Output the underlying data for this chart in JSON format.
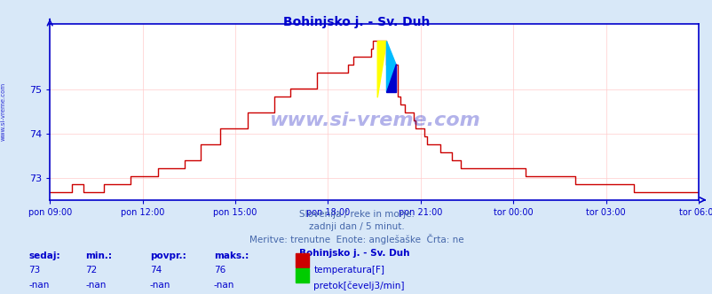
{
  "title": "Bohinjsko j. - Sv. Duh",
  "title_color": "#0000cc",
  "bg_color": "#d8e8f8",
  "plot_bg_color": "#ffffff",
  "grid_color": "#ffcccc",
  "axis_color": "#0000cc",
  "tick_color": "#0000cc",
  "watermark_text": "www.si-vreme.com",
  "watermark_color": "#0000bb",
  "watermark_alpha": 0.3,
  "left_label": "www.si-vreme.com",
  "xlabel_ticks": [
    "pon 09:00",
    "pon 12:00",
    "pon 15:00",
    "pon 18:00",
    "pon 21:00",
    "tor 00:00",
    "tor 03:00",
    "tor 06:00"
  ],
  "ylim": [
    72.5,
    76.5
  ],
  "yticks": [
    73,
    74,
    75
  ],
  "line_color": "#cc0000",
  "line_width": 1.0,
  "subtitle_lines": [
    "Slovenija / reke in morje.",
    "zadnji dan / 5 minut.",
    "Meritve: trenutne  Enote: anglešaške  Črta: ne"
  ],
  "subtitle_color": "#4466aa",
  "footer_color": "#0000cc",
  "info_labels": [
    "sedaj:",
    "min.:",
    "povpr.:",
    "maks.:"
  ],
  "info_values_temp": [
    "73",
    "72",
    "74",
    "76"
  ],
  "info_values_flow": [
    "-nan",
    "-nan",
    "-nan",
    "-nan"
  ],
  "legend_station": "Bohinjsko j. - Sv. Duh",
  "legend_temp_label": "temperatura[F]",
  "legend_temp_color": "#cc0000",
  "legend_flow_label": "pretok[čevelj3/min]",
  "legend_flow_color": "#00cc00",
  "temp_data": [
    72.68,
    72.68,
    72.68,
    72.68,
    72.68,
    72.68,
    72.68,
    72.68,
    72.68,
    72.68,
    72.86,
    72.86,
    72.86,
    72.86,
    72.86,
    72.68,
    72.68,
    72.68,
    72.68,
    72.68,
    72.68,
    72.68,
    72.68,
    72.68,
    72.86,
    72.86,
    72.86,
    72.86,
    72.86,
    72.86,
    72.86,
    72.86,
    72.86,
    72.86,
    72.86,
    72.86,
    73.04,
    73.04,
    73.04,
    73.04,
    73.04,
    73.04,
    73.04,
    73.04,
    73.04,
    73.04,
    73.04,
    73.04,
    73.22,
    73.22,
    73.22,
    73.22,
    73.22,
    73.22,
    73.22,
    73.22,
    73.22,
    73.22,
    73.22,
    73.22,
    73.4,
    73.4,
    73.4,
    73.4,
    73.4,
    73.4,
    73.4,
    73.76,
    73.76,
    73.76,
    73.76,
    73.76,
    73.76,
    73.76,
    73.76,
    73.76,
    74.12,
    74.12,
    74.12,
    74.12,
    74.12,
    74.12,
    74.12,
    74.12,
    74.12,
    74.12,
    74.12,
    74.12,
    74.48,
    74.48,
    74.48,
    74.48,
    74.48,
    74.48,
    74.48,
    74.48,
    74.48,
    74.48,
    74.48,
    74.48,
    74.84,
    74.84,
    74.84,
    74.84,
    74.84,
    74.84,
    74.84,
    75.02,
    75.02,
    75.02,
    75.02,
    75.02,
    75.02,
    75.02,
    75.02,
    75.02,
    75.02,
    75.02,
    75.02,
    75.38,
    75.38,
    75.38,
    75.38,
    75.38,
    75.38,
    75.38,
    75.38,
    75.38,
    75.38,
    75.38,
    75.38,
    75.38,
    75.38,
    75.56,
    75.56,
    75.74,
    75.74,
    75.74,
    75.74,
    75.74,
    75.74,
    75.74,
    75.74,
    75.92,
    76.1,
    76.1,
    76.1,
    76.1,
    76.1,
    76.1,
    75.56,
    75.56,
    75.56,
    75.56,
    75.56,
    74.84,
    74.66,
    74.66,
    74.48,
    74.48,
    74.48,
    74.48,
    74.3,
    74.12,
    74.12,
    74.12,
    74.12,
    73.94,
    73.76,
    73.76,
    73.76,
    73.76,
    73.76,
    73.76,
    73.58,
    73.58,
    73.58,
    73.58,
    73.58,
    73.4,
    73.4,
    73.4,
    73.4,
    73.22,
    73.22,
    73.22,
    73.22,
    73.22,
    73.22,
    73.22,
    73.22,
    73.22,
    73.22,
    73.22,
    73.22,
    73.22,
    73.22,
    73.22,
    73.22,
    73.22,
    73.22,
    73.22,
    73.22,
    73.22,
    73.22,
    73.22,
    73.22,
    73.22,
    73.22,
    73.22,
    73.22,
    73.22,
    73.04,
    73.04,
    73.04,
    73.04,
    73.04,
    73.04,
    73.04,
    73.04,
    73.04,
    73.04,
    73.04,
    73.04,
    73.04,
    73.04,
    73.04,
    73.04,
    73.04,
    73.04,
    73.04,
    73.04,
    73.04,
    73.04,
    72.86,
    72.86,
    72.86,
    72.86,
    72.86,
    72.86,
    72.86,
    72.86,
    72.86,
    72.86,
    72.86,
    72.86,
    72.86,
    72.86,
    72.86,
    72.86,
    72.86,
    72.86,
    72.86,
    72.86,
    72.86,
    72.86,
    72.86,
    72.86,
    72.86,
    72.86,
    72.68,
    72.68,
    72.68,
    72.68,
    72.68,
    72.68,
    72.68,
    72.68,
    72.68,
    72.68,
    72.68,
    72.68,
    72.68,
    72.68,
    72.68,
    72.68,
    72.68,
    72.68,
    72.68,
    72.68,
    72.68,
    72.68,
    72.68,
    72.68,
    72.68,
    72.68,
    72.68,
    72.68,
    72.68,
    72.68
  ]
}
